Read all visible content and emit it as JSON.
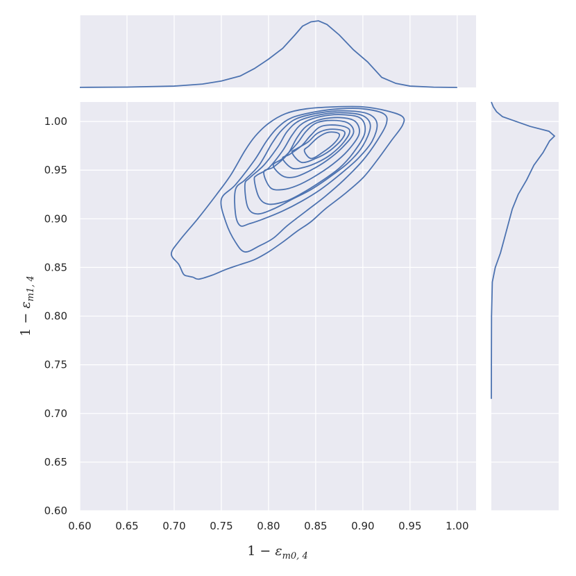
{
  "chart_data": {
    "type": "kde_jointplot",
    "xlabel": {
      "prefix": "1 − ",
      "symbol": "ε",
      "subscript": "m0, 4"
    },
    "ylabel": {
      "prefix": "1 − ",
      "symbol": "ε",
      "subscript": "m1, 4"
    },
    "xlim": [
      0.6,
      1.02
    ],
    "ylim": [
      0.6,
      1.02
    ],
    "x_ticks": [
      "0.60",
      "0.65",
      "0.70",
      "0.75",
      "0.80",
      "0.85",
      "0.90",
      "0.95",
      "1.00"
    ],
    "y_ticks": [
      "0.60",
      "0.65",
      "0.70",
      "0.75",
      "0.80",
      "0.85",
      "0.90",
      "0.95",
      "1.00"
    ],
    "grid": true,
    "line_color": "#4c72b0",
    "background_color": "#eaeaf2",
    "contours": [
      [
        [
          0.697,
          0.864
        ],
        [
          0.705,
          0.853
        ],
        [
          0.71,
          0.843
        ],
        [
          0.715,
          0.841
        ],
        [
          0.72,
          0.84
        ],
        [
          0.726,
          0.838
        ],
        [
          0.74,
          0.842
        ],
        [
          0.755,
          0.848
        ],
        [
          0.77,
          0.853
        ],
        [
          0.785,
          0.858
        ],
        [
          0.8,
          0.866
        ],
        [
          0.815,
          0.876
        ],
        [
          0.83,
          0.887
        ],
        [
          0.845,
          0.897
        ],
        [
          0.86,
          0.91
        ],
        [
          0.88,
          0.925
        ],
        [
          0.9,
          0.942
        ],
        [
          0.915,
          0.96
        ],
        [
          0.93,
          0.98
        ],
        [
          0.942,
          0.996
        ],
        [
          0.942,
          1.005
        ],
        [
          0.925,
          1.011
        ],
        [
          0.9,
          1.015
        ],
        [
          0.87,
          1.015
        ],
        [
          0.84,
          1.013
        ],
        [
          0.818,
          1.008
        ],
        [
          0.8,
          0.998
        ],
        [
          0.786,
          0.985
        ],
        [
          0.775,
          0.97
        ],
        [
          0.76,
          0.945
        ],
        [
          0.745,
          0.925
        ],
        [
          0.725,
          0.9
        ],
        [
          0.706,
          0.878
        ],
        [
          0.697,
          0.864
        ]
      ],
      [
        [
          0.75,
          0.92
        ],
        [
          0.755,
          0.896
        ],
        [
          0.765,
          0.876
        ],
        [
          0.775,
          0.866
        ],
        [
          0.79,
          0.872
        ],
        [
          0.805,
          0.88
        ],
        [
          0.82,
          0.893
        ],
        [
          0.84,
          0.908
        ],
        [
          0.86,
          0.923
        ],
        [
          0.88,
          0.94
        ],
        [
          0.9,
          0.96
        ],
        [
          0.915,
          0.98
        ],
        [
          0.925,
          0.998
        ],
        [
          0.922,
          1.008
        ],
        [
          0.9,
          1.013
        ],
        [
          0.875,
          1.013
        ],
        [
          0.85,
          1.01
        ],
        [
          0.825,
          1.004
        ],
        [
          0.81,
          0.994
        ],
        [
          0.798,
          0.98
        ],
        [
          0.785,
          0.96
        ],
        [
          0.765,
          0.935
        ],
        [
          0.75,
          0.92
        ]
      ],
      [
        [
          0.765,
          0.93
        ],
        [
          0.765,
          0.905
        ],
        [
          0.77,
          0.893
        ],
        [
          0.78,
          0.895
        ],
        [
          0.795,
          0.9
        ],
        [
          0.815,
          0.908
        ],
        [
          0.835,
          0.918
        ],
        [
          0.855,
          0.93
        ],
        [
          0.875,
          0.945
        ],
        [
          0.895,
          0.962
        ],
        [
          0.91,
          0.98
        ],
        [
          0.915,
          0.998
        ],
        [
          0.905,
          1.008
        ],
        [
          0.88,
          1.011
        ],
        [
          0.855,
          1.009
        ],
        [
          0.83,
          1.003
        ],
        [
          0.815,
          0.992
        ],
        [
          0.804,
          0.978
        ],
        [
          0.79,
          0.955
        ],
        [
          0.775,
          0.94
        ],
        [
          0.765,
          0.93
        ]
      ],
      [
        [
          0.775,
          0.935
        ],
        [
          0.778,
          0.912
        ],
        [
          0.788,
          0.905
        ],
        [
          0.805,
          0.91
        ],
        [
          0.825,
          0.92
        ],
        [
          0.845,
          0.93
        ],
        [
          0.865,
          0.943
        ],
        [
          0.885,
          0.958
        ],
        [
          0.9,
          0.975
        ],
        [
          0.908,
          0.995
        ],
        [
          0.9,
          1.006
        ],
        [
          0.878,
          1.009
        ],
        [
          0.855,
          1.007
        ],
        [
          0.833,
          1.001
        ],
        [
          0.82,
          0.99
        ],
        [
          0.81,
          0.974
        ],
        [
          0.795,
          0.955
        ],
        [
          0.78,
          0.942
        ],
        [
          0.775,
          0.935
        ]
      ],
      [
        [
          0.785,
          0.94
        ],
        [
          0.79,
          0.922
        ],
        [
          0.8,
          0.915
        ],
        [
          0.818,
          0.918
        ],
        [
          0.835,
          0.926
        ],
        [
          0.855,
          0.938
        ],
        [
          0.875,
          0.952
        ],
        [
          0.89,
          0.968
        ],
        [
          0.902,
          0.988
        ],
        [
          0.898,
          1.003
        ],
        [
          0.878,
          1.007
        ],
        [
          0.855,
          1.005
        ],
        [
          0.836,
          0.998
        ],
        [
          0.825,
          0.986
        ],
        [
          0.815,
          0.97
        ],
        [
          0.8,
          0.952
        ],
        [
          0.788,
          0.945
        ],
        [
          0.785,
          0.94
        ]
      ],
      [
        [
          0.795,
          0.948
        ],
        [
          0.802,
          0.932
        ],
        [
          0.815,
          0.93
        ],
        [
          0.83,
          0.934
        ],
        [
          0.848,
          0.943
        ],
        [
          0.868,
          0.956
        ],
        [
          0.884,
          0.97
        ],
        [
          0.896,
          0.987
        ],
        [
          0.892,
          1.0
        ],
        [
          0.876,
          1.004
        ],
        [
          0.855,
          1.002
        ],
        [
          0.84,
          0.995
        ],
        [
          0.83,
          0.983
        ],
        [
          0.82,
          0.966
        ],
        [
          0.805,
          0.953
        ],
        [
          0.795,
          0.948
        ]
      ],
      [
        [
          0.805,
          0.955
        ],
        [
          0.815,
          0.944
        ],
        [
          0.828,
          0.943
        ],
        [
          0.845,
          0.95
        ],
        [
          0.862,
          0.96
        ],
        [
          0.878,
          0.973
        ],
        [
          0.89,
          0.988
        ],
        [
          0.885,
          0.998
        ],
        [
          0.87,
          1.001
        ],
        [
          0.852,
          0.999
        ],
        [
          0.84,
          0.99
        ],
        [
          0.83,
          0.977
        ],
        [
          0.815,
          0.962
        ],
        [
          0.805,
          0.955
        ]
      ],
      [
        [
          0.815,
          0.962
        ],
        [
          0.825,
          0.952
        ],
        [
          0.838,
          0.953
        ],
        [
          0.852,
          0.958
        ],
        [
          0.866,
          0.966
        ],
        [
          0.88,
          0.979
        ],
        [
          0.886,
          0.991
        ],
        [
          0.874,
          0.996
        ],
        [
          0.856,
          0.995
        ],
        [
          0.845,
          0.986
        ],
        [
          0.835,
          0.975
        ],
        [
          0.822,
          0.966
        ],
        [
          0.815,
          0.962
        ]
      ],
      [
        [
          0.825,
          0.968
        ],
        [
          0.835,
          0.958
        ],
        [
          0.85,
          0.962
        ],
        [
          0.865,
          0.97
        ],
        [
          0.878,
          0.982
        ],
        [
          0.88,
          0.99
        ],
        [
          0.865,
          0.992
        ],
        [
          0.852,
          0.988
        ],
        [
          0.842,
          0.979
        ],
        [
          0.83,
          0.972
        ],
        [
          0.825,
          0.968
        ]
      ],
      [
        [
          0.838,
          0.97
        ],
        [
          0.845,
          0.962
        ],
        [
          0.857,
          0.968
        ],
        [
          0.87,
          0.978
        ],
        [
          0.875,
          0.987
        ],
        [
          0.864,
          0.989
        ],
        [
          0.853,
          0.984
        ],
        [
          0.843,
          0.975
        ],
        [
          0.838,
          0.97
        ]
      ]
    ],
    "x_marginal": [
      [
        0.6,
        0.001
      ],
      [
        0.65,
        0.005
      ],
      [
        0.7,
        0.02
      ],
      [
        0.73,
        0.05
      ],
      [
        0.75,
        0.095
      ],
      [
        0.77,
        0.17
      ],
      [
        0.785,
        0.28
      ],
      [
        0.8,
        0.42
      ],
      [
        0.815,
        0.58
      ],
      [
        0.828,
        0.78
      ],
      [
        0.836,
        0.91
      ],
      [
        0.845,
        0.975
      ],
      [
        0.853,
        0.99
      ],
      [
        0.862,
        0.935
      ],
      [
        0.875,
        0.78
      ],
      [
        0.89,
        0.56
      ],
      [
        0.905,
        0.38
      ],
      [
        0.92,
        0.15
      ],
      [
        0.935,
        0.06
      ],
      [
        0.95,
        0.02
      ],
      [
        0.975,
        0.004
      ],
      [
        1.0,
        0.0
      ]
    ],
    "y_marginal": [
      [
        0.715,
        0.0
      ],
      [
        0.75,
        0.001
      ],
      [
        0.8,
        0.003
      ],
      [
        0.835,
        0.015
      ],
      [
        0.85,
        0.06
      ],
      [
        0.865,
        0.14
      ],
      [
        0.88,
        0.2
      ],
      [
        0.895,
        0.26
      ],
      [
        0.91,
        0.32
      ],
      [
        0.925,
        0.41
      ],
      [
        0.94,
        0.54
      ],
      [
        0.955,
        0.65
      ],
      [
        0.968,
        0.79
      ],
      [
        0.98,
        0.89
      ],
      [
        0.985,
        0.965
      ],
      [
        0.99,
        0.88
      ],
      [
        0.995,
        0.59
      ],
      [
        1.0,
        0.38
      ],
      [
        1.005,
        0.17
      ],
      [
        1.01,
        0.08
      ],
      [
        1.015,
        0.03
      ],
      [
        1.02,
        0.0
      ]
    ]
  }
}
